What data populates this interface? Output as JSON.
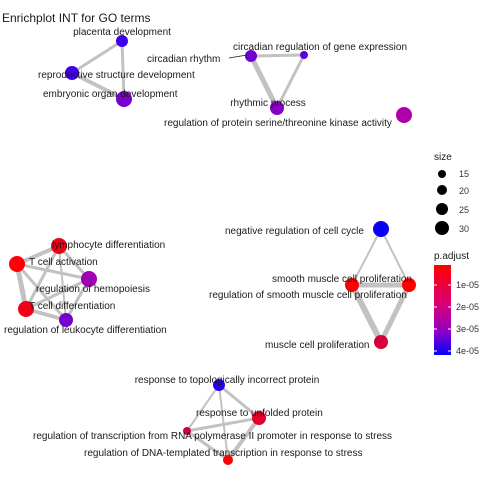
{
  "title": "Enrichplot INT for GO terms",
  "colors": {
    "edge": "#c2c2c2",
    "low": "#ff0000",
    "high": "#0000ff",
    "label_text": "#1a1a1a"
  },
  "legend": {
    "size_title": "size",
    "size_values": [
      "15",
      "20",
      "25",
      "30"
    ],
    "padj_title": "p.adjust",
    "padj_ticks": [
      "1e-05",
      "2e-05",
      "3e-05",
      "4e-05"
    ]
  },
  "nodes": [
    {
      "id": "placenta",
      "label": "placenta development"
    },
    {
      "id": "repro",
      "label": "reproductive structure development"
    },
    {
      "id": "embryonic",
      "label": "embryonic organ development"
    },
    {
      "id": "circadian",
      "label": "circadian rhythm"
    },
    {
      "id": "circgene",
      "label": "circadian regulation of gene expression"
    },
    {
      "id": "rhythmic",
      "label": "rhythmic process"
    },
    {
      "id": "kinase",
      "label": "regulation of protein serine/threonine kinase activity"
    },
    {
      "id": "lymph",
      "label": "lymphocyte differentiation"
    },
    {
      "id": "tact",
      "label": "T cell activation"
    },
    {
      "id": "hemo",
      "label": "regulation of hemopoiesis"
    },
    {
      "id": "tdiff",
      "label": "T cell differentiation"
    },
    {
      "id": "leuko",
      "label": "regulation of leukocyte differentiation"
    },
    {
      "id": "negcc",
      "label": "negative regulation of cell cycle"
    },
    {
      "id": "smcp",
      "label": "smooth muscle cell proliferation"
    },
    {
      "id": "regsmcp",
      "label": "regulation of smooth muscle cell proliferation"
    },
    {
      "id": "mcp",
      "label": "muscle cell proliferation"
    },
    {
      "id": "topo",
      "label": "response to topologically incorrect protein"
    },
    {
      "id": "unfolded",
      "label": "response to unfolded protein"
    },
    {
      "id": "rnapol",
      "label": "regulation of transcription from RNA polymerase II promoter in response to stress"
    },
    {
      "id": "dnatx",
      "label": "regulation of DNA-templated transcription in response to stress"
    }
  ],
  "edges": [
    [
      "placenta",
      "repro"
    ],
    [
      "placenta",
      "embryonic"
    ],
    [
      "repro",
      "embryonic"
    ],
    [
      "circadian",
      "circgene"
    ],
    [
      "circadian",
      "rhythmic"
    ],
    [
      "circgene",
      "rhythmic"
    ],
    [
      "lymph",
      "tact"
    ],
    [
      "lymph",
      "hemo"
    ],
    [
      "lymph",
      "tdiff"
    ],
    [
      "lymph",
      "leuko"
    ],
    [
      "tact",
      "hemo"
    ],
    [
      "tact",
      "tdiff"
    ],
    [
      "tact",
      "leuko"
    ],
    [
      "hemo",
      "tdiff"
    ],
    [
      "hemo",
      "leuko"
    ],
    [
      "tdiff",
      "leuko"
    ],
    [
      "negcc",
      "smcp"
    ],
    [
      "negcc",
      "regsmcp"
    ],
    [
      "smcp",
      "regsmcp"
    ],
    [
      "smcp",
      "mcp"
    ],
    [
      "regsmcp",
      "mcp"
    ],
    [
      "topo",
      "unfolded"
    ],
    [
      "topo",
      "rnapol"
    ],
    [
      "topo",
      "dnatx"
    ],
    [
      "unfolded",
      "rnapol"
    ],
    [
      "unfolded",
      "dnatx"
    ],
    [
      "rnapol",
      "dnatx"
    ]
  ]
}
